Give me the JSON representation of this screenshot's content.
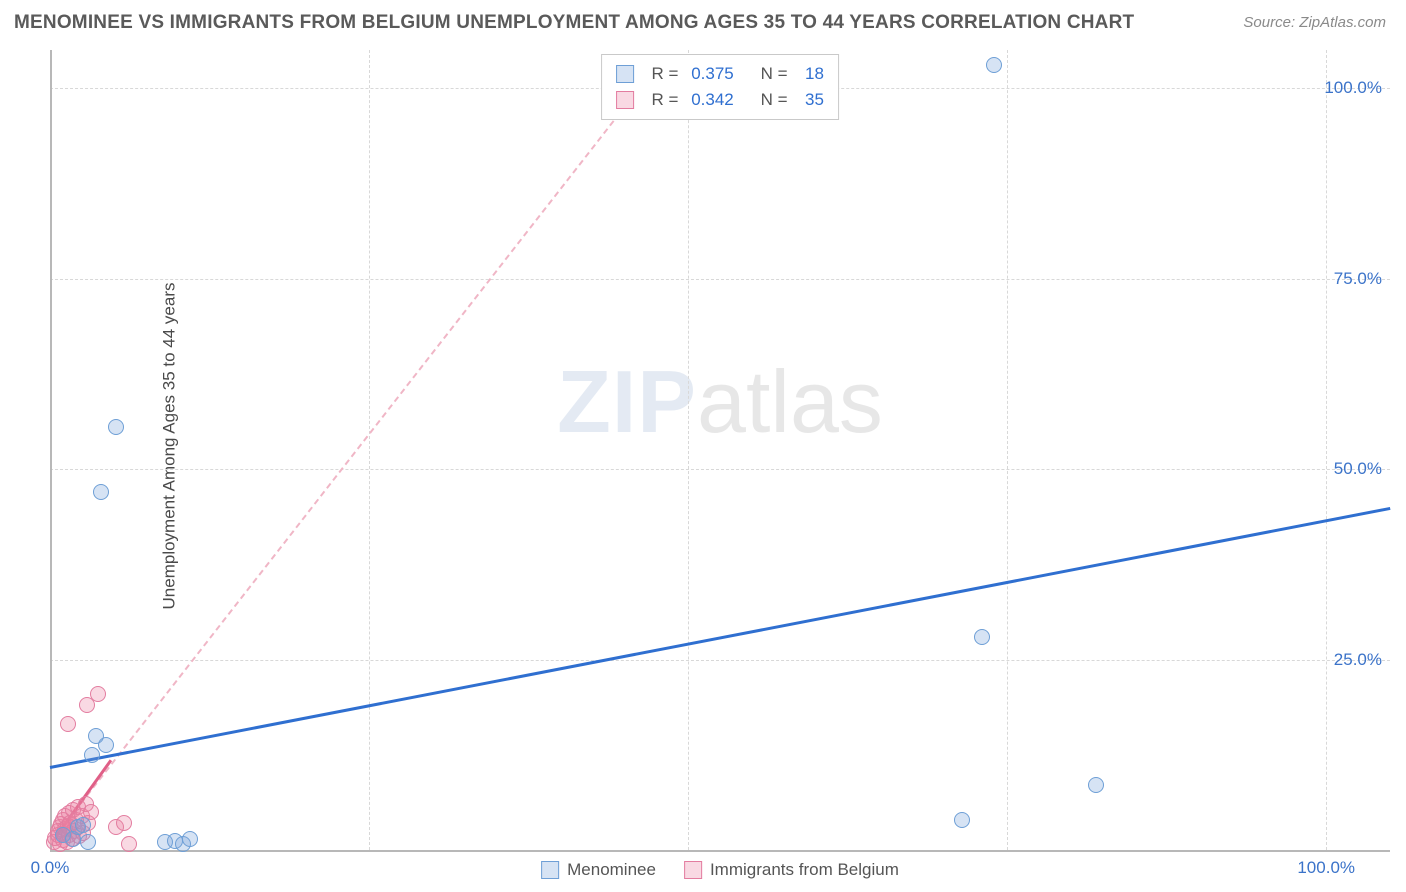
{
  "title": "MENOMINEE VS IMMIGRANTS FROM BELGIUM UNEMPLOYMENT AMONG AGES 35 TO 44 YEARS CORRELATION CHART",
  "source_label": "Source: ",
  "source_site": "ZipAtlas.com",
  "ylabel": "Unemployment Among Ages 35 to 44 years",
  "watermark_a": "ZIP",
  "watermark_b": "atlas",
  "chart": {
    "type": "scatter",
    "xlim": [
      0,
      105
    ],
    "ylim": [
      0,
      105
    ],
    "x_ticks": [
      {
        "v": 0,
        "label": "0.0%"
      },
      {
        "v": 100,
        "label": "100.0%"
      }
    ],
    "y_ticks": [
      {
        "v": 25,
        "label": "25.0%"
      },
      {
        "v": 50,
        "label": "50.0%"
      },
      {
        "v": 75,
        "label": "75.0%"
      },
      {
        "v": 100,
        "label": "100.0%"
      }
    ],
    "y_grid": [
      25,
      50,
      75,
      100
    ],
    "x_grid": [
      25,
      50,
      75,
      100
    ],
    "axis_color": "#b8b8b8",
    "grid_color": "#d8d8d8",
    "tick_color_y": "#3b73c9",
    "tick_color_x": "#3b73c9",
    "background_color": "#ffffff",
    "point_radius": 8,
    "series": [
      {
        "name": "Menominee",
        "color_fill": "rgba(120,163,219,0.30)",
        "color_stroke": "#6e9fd6",
        "trend": {
          "x0": 0,
          "y0": 11,
          "x1": 105,
          "y1": 45,
          "style": "solid",
          "color": "#2f6fd0",
          "width": 3
        },
        "stats": {
          "R": "0.375",
          "N": "18"
        },
        "points": [
          {
            "x": 1.0,
            "y": 2.0
          },
          {
            "x": 1.8,
            "y": 1.5
          },
          {
            "x": 2.2,
            "y": 3.0
          },
          {
            "x": 2.6,
            "y": 3.3
          },
          {
            "x": 3.0,
            "y": 1.0
          },
          {
            "x": 3.3,
            "y": 12.5
          },
          {
            "x": 3.6,
            "y": 15.0
          },
          {
            "x": 4.4,
            "y": 13.8
          },
          {
            "x": 4.0,
            "y": 47.0
          },
          {
            "x": 5.2,
            "y": 55.5
          },
          {
            "x": 9.0,
            "y": 1.0
          },
          {
            "x": 9.8,
            "y": 1.2
          },
          {
            "x": 10.4,
            "y": 0.8
          },
          {
            "x": 11.0,
            "y": 1.5
          },
          {
            "x": 71.5,
            "y": 4.0
          },
          {
            "x": 73.0,
            "y": 28.0
          },
          {
            "x": 74.0,
            "y": 103.0
          },
          {
            "x": 82.0,
            "y": 8.5
          }
        ]
      },
      {
        "name": "Immigrants from Belgium",
        "color_fill": "rgba(236,130,162,0.30)",
        "color_stroke": "#e37da0",
        "trend": {
          "x0": 0,
          "y0": 1,
          "x1": 48,
          "y1": 104,
          "style": "dashed",
          "color": "#f0b6c6",
          "width": 2
        },
        "trend_solid_short": {
          "x0": 0.5,
          "y0": 2,
          "x1": 4.8,
          "y1": 12,
          "color": "#e05f87",
          "width": 3
        },
        "stats": {
          "R": "0.342",
          "N": "35"
        },
        "points": [
          {
            "x": 0.3,
            "y": 1.0
          },
          {
            "x": 0.4,
            "y": 1.6
          },
          {
            "x": 0.6,
            "y": 2.0
          },
          {
            "x": 0.6,
            "y": 2.5
          },
          {
            "x": 0.8,
            "y": 0.8
          },
          {
            "x": 0.8,
            "y": 3.0
          },
          {
            "x": 0.9,
            "y": 3.4
          },
          {
            "x": 1.0,
            "y": 1.3
          },
          {
            "x": 1.0,
            "y": 4.0
          },
          {
            "x": 1.1,
            "y": 2.1
          },
          {
            "x": 1.2,
            "y": 2.8
          },
          {
            "x": 1.2,
            "y": 4.5
          },
          {
            "x": 1.3,
            "y": 1.0
          },
          {
            "x": 1.4,
            "y": 3.2
          },
          {
            "x": 1.5,
            "y": 2.0
          },
          {
            "x": 1.5,
            "y": 4.8
          },
          {
            "x": 1.6,
            "y": 3.6
          },
          {
            "x": 1.7,
            "y": 1.4
          },
          {
            "x": 1.8,
            "y": 5.2
          },
          {
            "x": 1.9,
            "y": 2.5
          },
          {
            "x": 2.0,
            "y": 4.0
          },
          {
            "x": 2.1,
            "y": 3.0
          },
          {
            "x": 2.2,
            "y": 5.6
          },
          {
            "x": 2.3,
            "y": 1.8
          },
          {
            "x": 2.5,
            "y": 4.4
          },
          {
            "x": 2.6,
            "y": 2.2
          },
          {
            "x": 2.8,
            "y": 6.0
          },
          {
            "x": 3.0,
            "y": 3.5
          },
          {
            "x": 3.2,
            "y": 5.0
          },
          {
            "x": 1.4,
            "y": 16.5
          },
          {
            "x": 2.9,
            "y": 19.0
          },
          {
            "x": 3.8,
            "y": 20.5
          },
          {
            "x": 5.2,
            "y": 3.0
          },
          {
            "x": 5.8,
            "y": 3.6
          },
          {
            "x": 6.2,
            "y": 0.8
          }
        ]
      }
    ],
    "stats_label_R": "R = ",
    "stats_label_N": "N = ",
    "stats_value_color": "#2f6fd0",
    "stats_text_color": "#555555",
    "legend_text_color": "#555555"
  }
}
